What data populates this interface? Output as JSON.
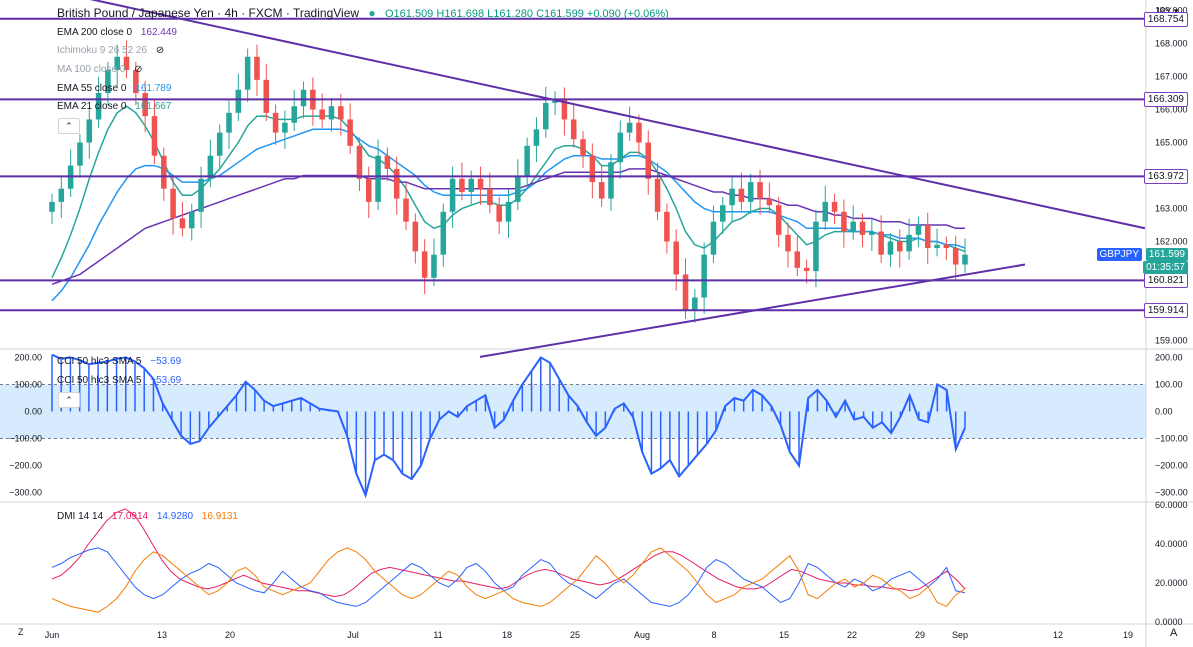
{
  "header": {
    "pair": "British Pound / Japanese Yen",
    "interval": "4h",
    "source": "FXCM",
    "platform": "TradingView",
    "open": "O161.509",
    "high": "H161.698",
    "low": "L161.280",
    "close": "C161.599",
    "change": "+0.090 (+0.06%)"
  },
  "legend": {
    "ema200": {
      "label": "EMA 200 close 0",
      "value": "162.449"
    },
    "ichimoku": {
      "label": "Ichimoku 9 26 52 26"
    },
    "ma100": {
      "label": "MA 100 close 0"
    },
    "ema55": {
      "label": "EMA 55 close 0",
      "value": "161.789"
    },
    "ema21": {
      "label": "EMA 21 close 0",
      "value": "161.667"
    },
    "cci_a": {
      "label": "CCI 50 hlc3 SMA 5",
      "value": "−53.69"
    },
    "cci_b": {
      "label": "CCI 50 hlc3 SMA 5",
      "value": "−53.69"
    },
    "dmi": {
      "label": "DMI 14 14",
      "adx": "17.0914",
      "plus_di": "14.9280",
      "minus_di": "16.9131"
    }
  },
  "currency": "JPY",
  "symbol_tag": "GBPJPY",
  "last_price": "161.599",
  "countdown": "01:35:57",
  "level_tags": [
    "168.754",
    "166.309",
    "163.972",
    "160.821",
    "159.914"
  ],
  "collapse_glyph": "⌃",
  "eye_glyph": "⊘",
  "z_label": "Z",
  "gear_glyph": "A",
  "chart_data": [
    {
      "type": "candlestick",
      "title": "British Pound / Japanese Yen · 4h · FXCM",
      "ylim": [
        158.8,
        169.2
      ],
      "yticks": [
        "169.000",
        "168.000",
        "167.000",
        "166.000",
        "165.000",
        "163.000",
        "162.000",
        "159.000"
      ],
      "xticks": [
        [
          "Jun",
          52
        ],
        [
          "13",
          162
        ],
        [
          "20",
          230
        ],
        [
          "Jul",
          353
        ],
        [
          "11",
          438
        ],
        [
          "18",
          507
        ],
        [
          "25",
          575
        ],
        [
          "Aug",
          642
        ],
        [
          "8",
          714
        ],
        [
          "15",
          784
        ],
        [
          "22",
          852
        ],
        [
          "29",
          920
        ],
        [
          "Sep",
          960
        ],
        [
          "12",
          1058
        ],
        [
          "19",
          1128
        ]
      ],
      "horizontal_levels": [
        168.754,
        166.309,
        163.972,
        160.821,
        159.914
      ],
      "trendlines": [
        {
          "name": "descending-resistance",
          "from": [
            52,
            169.6
          ],
          "to": [
            1145,
            162.4
          ]
        },
        {
          "name": "ascending-support",
          "from": [
            480,
            158.5
          ],
          "to": [
            1025,
            161.3
          ]
        }
      ],
      "series": [
        {
          "name": "Close",
          "values": [
            163.2,
            163.6,
            164.3,
            165.0,
            165.7,
            166.5,
            167.2,
            167.6,
            167.2,
            166.5,
            165.8,
            164.6,
            163.6,
            162.7,
            162.4,
            162.9,
            163.9,
            164.6,
            165.3,
            165.9,
            166.6,
            167.6,
            166.9,
            165.9,
            165.3,
            165.6,
            166.1,
            166.6,
            166.0,
            165.7,
            166.1,
            165.7,
            164.9,
            163.9,
            163.2,
            164.6,
            164.2,
            163.3,
            162.6,
            161.7,
            160.9,
            161.6,
            162.9,
            163.9,
            163.5,
            163.9,
            163.6,
            163.1,
            162.6,
            163.2,
            164.0,
            164.9,
            165.4,
            166.2,
            166.3,
            165.7,
            165.1,
            164.6,
            163.8,
            163.3,
            164.4,
            165.3,
            165.6,
            165.0,
            163.9,
            162.9,
            162.0,
            161.0,
            159.9,
            160.3,
            161.6,
            162.6,
            163.1,
            163.6,
            163.2,
            163.8,
            163.3,
            163.1,
            162.2,
            161.7,
            161.2,
            161.1,
            162.6,
            163.2,
            162.9,
            162.3,
            162.6,
            162.2,
            162.3,
            161.6,
            162.0,
            161.7,
            162.2,
            162.5,
            161.8,
            161.9,
            161.8,
            161.3,
            161.6
          ]
        },
        {
          "name": "EMA 21",
          "values": [
            160.9,
            161.5,
            162.2,
            163.0,
            163.9,
            164.7,
            165.4,
            165.9,
            166.1,
            165.9,
            165.5,
            165.0,
            164.4,
            163.8,
            163.4,
            163.4,
            163.6,
            163.9,
            164.2,
            164.6,
            165.0,
            165.5,
            165.8,
            165.8,
            165.7,
            165.7,
            165.7,
            165.8,
            165.8,
            165.8,
            165.8,
            165.7,
            165.4,
            165.0,
            164.6,
            164.5,
            164.3,
            164.0,
            163.6,
            163.1,
            162.6,
            162.4,
            162.5,
            162.8,
            163.0,
            163.1,
            163.2,
            163.2,
            163.1,
            163.1,
            163.3,
            163.6,
            164.0,
            164.4,
            164.8,
            164.9,
            164.9,
            164.8,
            164.6,
            164.3,
            164.3,
            164.5,
            164.7,
            164.7,
            164.5,
            164.1,
            163.6,
            163.0,
            162.3,
            161.9,
            161.8,
            162.0,
            162.3,
            162.6,
            162.7,
            162.9,
            163.0,
            163.0,
            162.8,
            162.5,
            162.2,
            161.9,
            162.0,
            162.2,
            162.3,
            162.3,
            162.3,
            162.3,
            162.3,
            162.2,
            162.1,
            162.0,
            162.0,
            162.1,
            162.0,
            162.0,
            161.9,
            161.8,
            161.7
          ]
        },
        {
          "name": "EMA 55",
          "values": [
            160.2,
            160.5,
            160.9,
            161.4,
            161.9,
            162.5,
            163.0,
            163.5,
            163.9,
            164.2,
            164.3,
            164.3,
            164.2,
            164.0,
            163.8,
            163.8,
            163.8,
            163.9,
            164.0,
            164.2,
            164.4,
            164.6,
            164.8,
            164.9,
            165.0,
            165.1,
            165.2,
            165.3,
            165.4,
            165.4,
            165.4,
            165.4,
            165.3,
            165.1,
            164.9,
            164.8,
            164.6,
            164.4,
            164.2,
            164.0,
            163.7,
            163.5,
            163.4,
            163.4,
            163.4,
            163.4,
            163.4,
            163.4,
            163.4,
            163.4,
            163.5,
            163.6,
            163.8,
            164.1,
            164.3,
            164.5,
            164.6,
            164.6,
            164.6,
            164.5,
            164.5,
            164.5,
            164.6,
            164.6,
            164.5,
            164.3,
            164.1,
            163.8,
            163.5,
            163.2,
            163.0,
            162.9,
            162.9,
            162.9,
            162.9,
            162.9,
            162.9,
            162.9,
            162.8,
            162.7,
            162.6,
            162.4,
            162.4,
            162.4,
            162.4,
            162.4,
            162.3,
            162.3,
            162.3,
            162.2,
            162.2,
            162.1,
            162.1,
            162.1,
            162.0,
            162.0,
            161.9,
            161.9,
            161.8
          ]
        },
        {
          "name": "EMA 200",
          "values": [
            160.7,
            160.8,
            160.9,
            161.0,
            161.2,
            161.4,
            161.6,
            161.8,
            162.0,
            162.2,
            162.4,
            162.5,
            162.6,
            162.7,
            162.8,
            162.9,
            163.0,
            163.1,
            163.2,
            163.3,
            163.4,
            163.5,
            163.6,
            163.7,
            163.8,
            163.9,
            163.9,
            164.0,
            164.0,
            164.0,
            164.0,
            164.0,
            164.0,
            164.0,
            163.9,
            163.9,
            163.9,
            163.8,
            163.8,
            163.7,
            163.6,
            163.6,
            163.6,
            163.6,
            163.6,
            163.6,
            163.6,
            163.6,
            163.6,
            163.6,
            163.6,
            163.7,
            163.8,
            163.9,
            164.0,
            164.1,
            164.1,
            164.1,
            164.1,
            164.1,
            164.1,
            164.1,
            164.2,
            164.2,
            164.2,
            164.1,
            164.0,
            163.9,
            163.8,
            163.7,
            163.6,
            163.5,
            163.5,
            163.4,
            163.4,
            163.3,
            163.3,
            163.3,
            163.2,
            163.1,
            163.1,
            163.0,
            162.9,
            162.9,
            162.8,
            162.8,
            162.7,
            162.7,
            162.7,
            162.6,
            162.6,
            162.6,
            162.5,
            162.5,
            162.5,
            162.5,
            162.5,
            162.4,
            162.4
          ]
        }
      ]
    },
    {
      "type": "area",
      "title": "CCI 50 hlc3 SMA 5",
      "ylim": [
        -320,
        220
      ],
      "yticks": [
        "200.00",
        "100.00",
        "0.00",
        "−100.00",
        "−200.00",
        "−300.00"
      ],
      "band": [
        -100,
        100
      ],
      "values": [
        210,
        195,
        200,
        190,
        175,
        180,
        185,
        195,
        200,
        185,
        160,
        120,
        30,
        -30,
        -90,
        -120,
        -110,
        -60,
        -20,
        20,
        60,
        110,
        80,
        40,
        20,
        30,
        40,
        50,
        30,
        10,
        5,
        0,
        -90,
        -230,
        -310,
        -180,
        -160,
        -180,
        -230,
        -250,
        -200,
        -100,
        -30,
        0,
        -20,
        20,
        40,
        60,
        -60,
        -30,
        40,
        100,
        150,
        200,
        180,
        120,
        60,
        20,
        -40,
        -90,
        -60,
        10,
        30,
        -20,
        -150,
        -230,
        -210,
        -180,
        -240,
        -200,
        -160,
        -120,
        -70,
        20,
        50,
        40,
        80,
        60,
        20,
        -50,
        -150,
        -200,
        50,
        80,
        40,
        -20,
        40,
        -30,
        -20,
        -60,
        -40,
        -80,
        -20,
        60,
        -30,
        -40,
        100,
        80,
        -140,
        -60
      ]
    },
    {
      "type": "line",
      "title": "DMI 14 14",
      "ylim": [
        0,
        60
      ],
      "yticks": [
        "60.0000",
        "40.0000",
        "20.0000",
        "0.0000"
      ],
      "series": [
        {
          "name": "ADX",
          "color": "#e91e63",
          "values": [
            22,
            24,
            28,
            33,
            40,
            46,
            52,
            56,
            58,
            55,
            48,
            40,
            32,
            26,
            22,
            20,
            18,
            17,
            18,
            20,
            22,
            24,
            22,
            20,
            19,
            18,
            17,
            16,
            16,
            15,
            14,
            13,
            14,
            17,
            21,
            25,
            27,
            28,
            27,
            26,
            25,
            24,
            23,
            22,
            21,
            21,
            20,
            19,
            18,
            17,
            18,
            21,
            24,
            26,
            27,
            26,
            24,
            22,
            21,
            20,
            19,
            20,
            22,
            25,
            28,
            31,
            34,
            36,
            36,
            34,
            31,
            28,
            25,
            22,
            20,
            18,
            17,
            17,
            18,
            21,
            24,
            27,
            26,
            24,
            22,
            21,
            20,
            20,
            19,
            19,
            18,
            18,
            17,
            17,
            16,
            17,
            20,
            23,
            26,
            22,
            17
          ]
        },
        {
          "name": "+DI",
          "color": "#2962ff",
          "values": [
            28,
            30,
            33,
            35,
            37,
            38,
            36,
            30,
            24,
            18,
            14,
            12,
            14,
            18,
            22,
            25,
            27,
            30,
            28,
            24,
            20,
            18,
            16,
            15,
            20,
            26,
            22,
            18,
            16,
            15,
            12,
            10,
            9,
            8,
            10,
            14,
            18,
            22,
            26,
            30,
            28,
            24,
            20,
            18,
            22,
            28,
            30,
            26,
            20,
            16,
            18,
            24,
            28,
            32,
            30,
            24,
            20,
            18,
            15,
            12,
            16,
            20,
            22,
            18,
            14,
            10,
            9,
            8,
            10,
            14,
            20,
            28,
            32,
            30,
            26,
            22,
            20,
            18,
            14,
            10,
            12,
            20,
            30,
            28,
            24,
            20,
            18,
            22,
            20,
            16,
            18,
            22,
            24,
            26,
            22,
            18,
            22,
            28,
            16,
            15
          ]
        },
        {
          "name": "−DI",
          "color": "#f57c00",
          "values": [
            12,
            10,
            8,
            7,
            6,
            5,
            8,
            12,
            18,
            26,
            32,
            36,
            34,
            30,
            26,
            22,
            18,
            14,
            16,
            20,
            26,
            28,
            24,
            18,
            16,
            14,
            16,
            18,
            20,
            26,
            32,
            36,
            38,
            36,
            32,
            26,
            22,
            18,
            14,
            12,
            14,
            18,
            22,
            26,
            24,
            18,
            14,
            12,
            14,
            16,
            12,
            10,
            9,
            8,
            10,
            14,
            18,
            22,
            28,
            34,
            30,
            24,
            20,
            24,
            30,
            36,
            38,
            34,
            30,
            26,
            20,
            14,
            10,
            12,
            14,
            18,
            20,
            22,
            26,
            30,
            34,
            26,
            14,
            12,
            16,
            20,
            22,
            18,
            20,
            24,
            22,
            18,
            16,
            12,
            14,
            18,
            10,
            8,
            14,
            17
          ]
        }
      ]
    }
  ]
}
